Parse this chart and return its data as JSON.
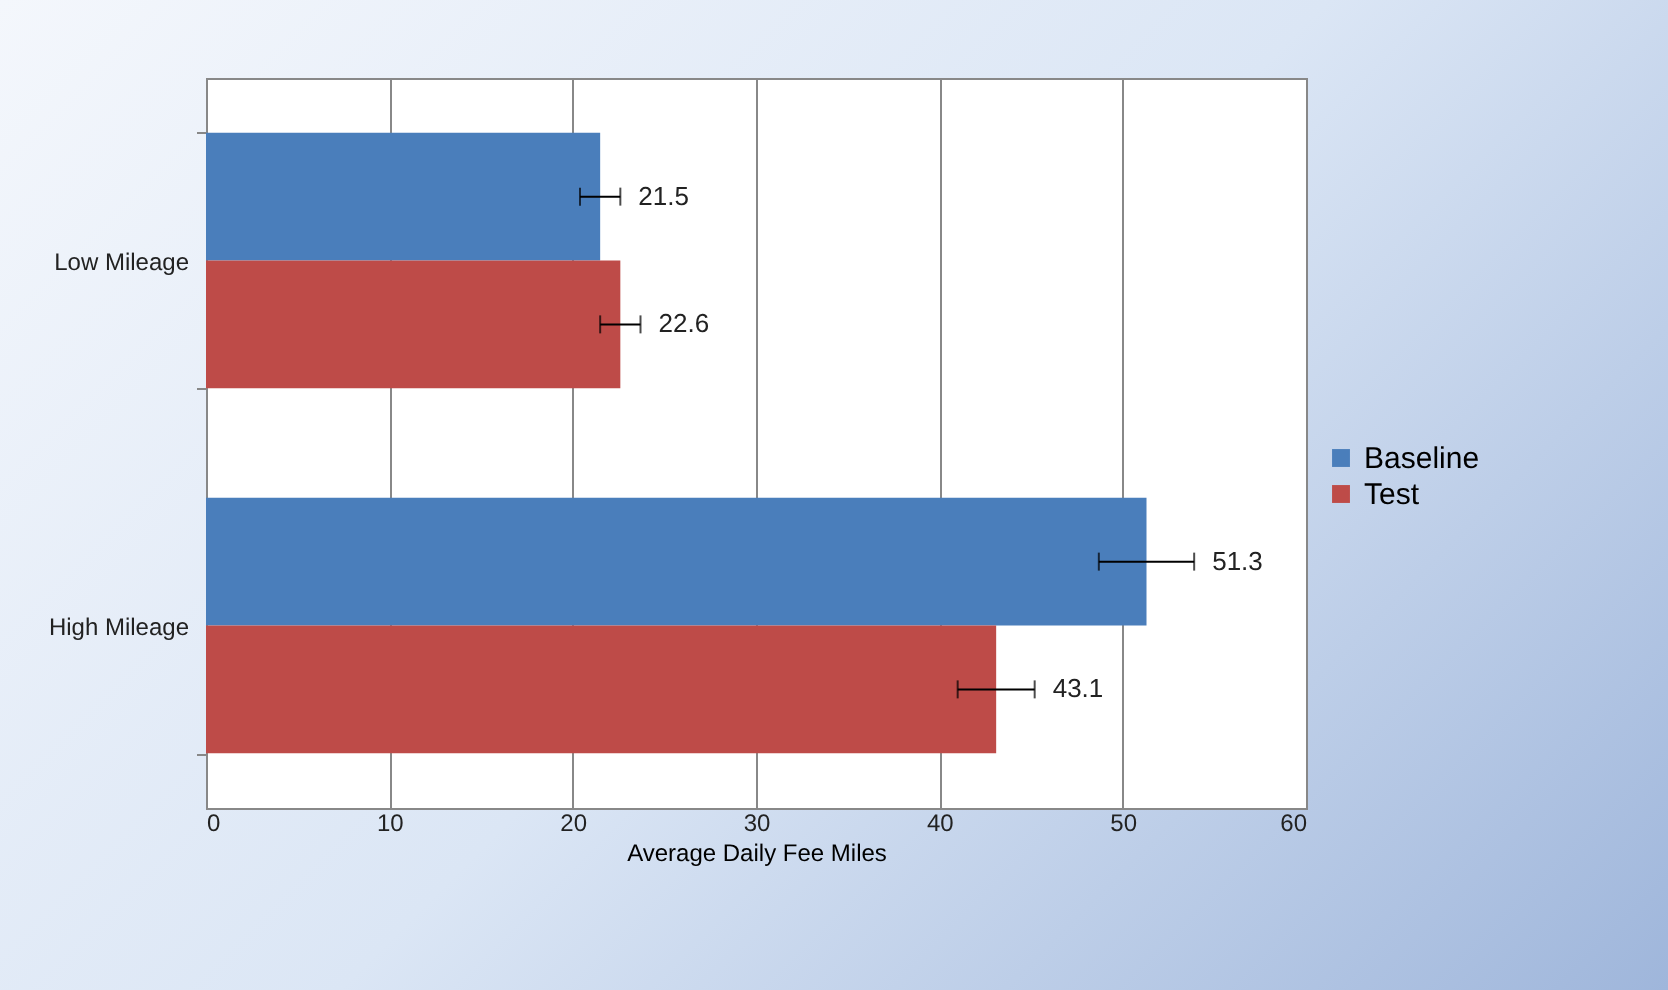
{
  "chart_data": {
    "type": "bar",
    "orientation": "horizontal",
    "xlabel": "Average Daily Fee Miles",
    "categories": [
      "Low Mileage",
      "High Mileage"
    ],
    "series": [
      {
        "name": "Baseline",
        "color": "#4a7ebb",
        "values": [
          21.5,
          51.3
        ],
        "errors": [
          1.1,
          2.6
        ]
      },
      {
        "name": "Test",
        "color": "#be4b48",
        "values": [
          22.6,
          43.1
        ],
        "errors": [
          1.1,
          2.1
        ]
      }
    ],
    "xlim": [
      0,
      60
    ],
    "xticks": [
      0,
      10,
      20,
      30,
      40,
      50,
      60
    ],
    "grid": "x",
    "legend": "right",
    "data_labels": true
  }
}
